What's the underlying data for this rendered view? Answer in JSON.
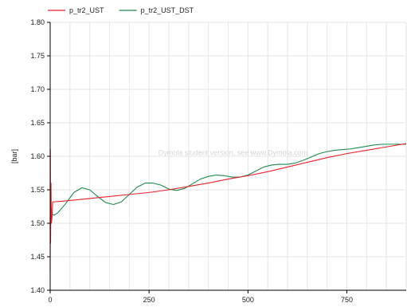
{
  "chart_data": {
    "type": "line",
    "title": "",
    "xlabel": "",
    "ylabel": "[bar]",
    "xlim": [
      0,
      900
    ],
    "ylim": [
      1.4,
      1.8
    ],
    "xticks": [
      0,
      250,
      500,
      750
    ],
    "xtick_labels": [
      "0",
      "250",
      "500",
      "750"
    ],
    "yticks": [
      1.4,
      1.45,
      1.5,
      1.55,
      1.6,
      1.65,
      1.7,
      1.75,
      1.8
    ],
    "ytick_labels": [
      "1.40",
      "1.45",
      "1.50",
      "1.55",
      "1.60",
      "1.65",
      "1.70",
      "1.75",
      "1.80"
    ],
    "grid": true,
    "legend_position": "top-left",
    "watermark": "Dymola student version, see www.Dymola.com",
    "series": [
      {
        "name": "p_tr2_UST",
        "color": "#e8202a",
        "x": [
          0,
          0.5,
          1,
          2,
          3,
          5,
          6,
          7,
          10,
          50,
          100,
          150,
          200,
          250,
          300,
          350,
          400,
          450,
          500,
          550,
          600,
          650,
          700,
          750,
          800,
          850,
          900
        ],
        "y": [
          1.43,
          1.61,
          1.47,
          1.56,
          1.5,
          1.51,
          1.53,
          1.532,
          1.532,
          1.534,
          1.537,
          1.54,
          1.543,
          1.546,
          1.55,
          1.555,
          1.56,
          1.566,
          1.571,
          1.577,
          1.584,
          1.591,
          1.598,
          1.604,
          1.609,
          1.614,
          1.619
        ]
      },
      {
        "name": "p_tr2_UST_DST",
        "color": "#1f8a4c",
        "x": [
          0,
          5,
          10,
          20,
          40,
          60,
          80,
          100,
          120,
          140,
          160,
          180,
          200,
          220,
          240,
          260,
          280,
          300,
          320,
          340,
          360,
          380,
          400,
          420,
          440,
          460,
          480,
          500,
          520,
          540,
          560,
          580,
          600,
          620,
          640,
          660,
          680,
          700,
          720,
          740,
          760,
          780,
          800,
          820,
          840,
          860,
          880,
          900
        ],
        "y": [
          1.53,
          1.514,
          1.512,
          1.516,
          1.53,
          1.546,
          1.553,
          1.55,
          1.54,
          1.531,
          1.528,
          1.532,
          1.543,
          1.554,
          1.56,
          1.56,
          1.557,
          1.551,
          1.549,
          1.552,
          1.559,
          1.566,
          1.57,
          1.572,
          1.571,
          1.569,
          1.569,
          1.572,
          1.578,
          1.584,
          1.587,
          1.588,
          1.588,
          1.59,
          1.594,
          1.599,
          1.604,
          1.607,
          1.609,
          1.61,
          1.611,
          1.613,
          1.615,
          1.617,
          1.618,
          1.618,
          1.618,
          1.618
        ]
      }
    ]
  }
}
